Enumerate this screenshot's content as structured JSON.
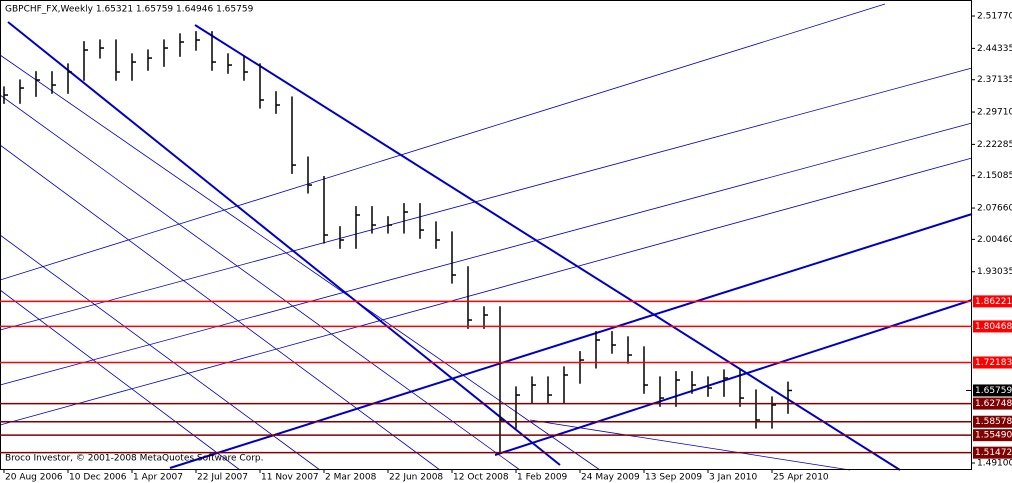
{
  "chart_data": {
    "type": "ohlc",
    "title": "GBPCHF_FX,Weekly  1.65321 1.65759 1.64946 1.65759",
    "watermark": "Broco Investor, © 2001-2008 MetaQuotes Software Corp.",
    "categories": [
      "20 Aug 2006",
      null,
      null,
      null,
      "10 Dec 2006",
      null,
      null,
      null,
      "1 Apr 2007",
      null,
      null,
      null,
      "22 Jul 2007",
      null,
      null,
      null,
      "11 Nov 2007",
      null,
      null,
      null,
      "2 Mar 2008",
      null,
      null,
      null,
      "22 Jun 2008",
      null,
      null,
      null,
      "12 Oct 2008",
      null,
      null,
      null,
      "1 Feb 2009",
      null,
      null,
      null,
      "24 May 2009",
      null,
      null,
      null,
      "13 Sep 2009",
      null,
      null,
      null,
      "3 Jan 2010",
      null,
      null,
      null,
      "25 Apr 2010",
      null
    ],
    "high": [
      2.356,
      2.372,
      2.391,
      2.391,
      2.409,
      2.46,
      2.464,
      2.464,
      2.432,
      2.441,
      2.464,
      2.478,
      2.483,
      2.483,
      2.432,
      2.425,
      2.409,
      2.345,
      2.333,
      2.195,
      2.15,
      2.035,
      2.081,
      2.081,
      2.058,
      2.088,
      2.088,
      2.046,
      2.023,
      1.943,
      1.851,
      1.851,
      1.667,
      1.69,
      1.69,
      1.713,
      1.748,
      1.794,
      1.794,
      1.782,
      1.759,
      1.69,
      1.702,
      1.702,
      1.69,
      1.706,
      1.706,
      1.66,
      1.644,
      1.678
    ],
    "low": [
      2.316,
      2.316,
      2.332,
      2.339,
      2.339,
      2.369,
      2.42,
      2.369,
      2.369,
      2.392,
      2.401,
      2.424,
      2.438,
      2.392,
      2.385,
      2.369,
      2.305,
      2.293,
      2.155,
      2.11,
      1.995,
      1.983,
      1.983,
      2.018,
      2.018,
      2.018,
      2.006,
      1.983,
      1.903,
      1.799,
      1.799,
      1.515,
      1.57,
      1.627,
      1.627,
      1.627,
      1.673,
      1.708,
      1.742,
      1.719,
      1.65,
      1.62,
      1.62,
      1.65,
      1.643,
      1.643,
      1.62,
      1.57,
      1.57,
      1.604
    ],
    "close": [
      2.3362,
      2.3523,
      2.3707,
      2.3592,
      2.3891,
      2.4396,
      2.4442,
      2.3891,
      2.412,
      2.4212,
      2.4442,
      2.458,
      2.4626,
      2.412,
      2.4051,
      2.3891,
      2.3248,
      2.3133,
      2.1754,
      2.1295,
      2.0147,
      2.0032,
      2.0606,
      2.0376,
      2.0376,
      2.0675,
      2.0261,
      2.0032,
      1.9228,
      1.8194,
      1.8309,
      1.5897,
      1.6471,
      1.6701,
      1.6471,
      1.6931,
      1.7275,
      1.7735,
      1.762,
      1.739,
      1.6701,
      1.6402,
      1.6816,
      1.6701,
      1.6632,
      1.6862,
      1.6402,
      1.5897,
      1.6242,
      1.65759
    ],
    "color": "#000000",
    "ylim": [
      1.4749,
      2.5545
    ],
    "yticks": [
      {
        "value": 2.5177,
        "label": "2.51770"
      },
      2.44335,
      2.37135,
      {
        "value": 2.2971,
        "label": "2.29710"
      },
      2.22285,
      2.15085,
      {
        "value": 2.0766,
        "label": "2.07660"
      },
      {
        "value": 2.0046,
        "label": "2.00460"
      },
      1.93035,
      {
        "value": 1.491,
        "label": "1.49100"
      }
    ],
    "levels": [
      1.86221,
      1.80468,
      1.72183,
      1.62748,
      1.58578,
      {
        "value": 1.5549,
        "label": "1.55490"
      },
      1.51472
    ],
    "level_colors": [
      "#ff0000",
      "#ff0000",
      "#ff0000",
      "#800000",
      "#800000",
      "#800000",
      "#800000"
    ],
    "last": 1.65759,
    "last_color": "#000000",
    "grid": false
  }
}
